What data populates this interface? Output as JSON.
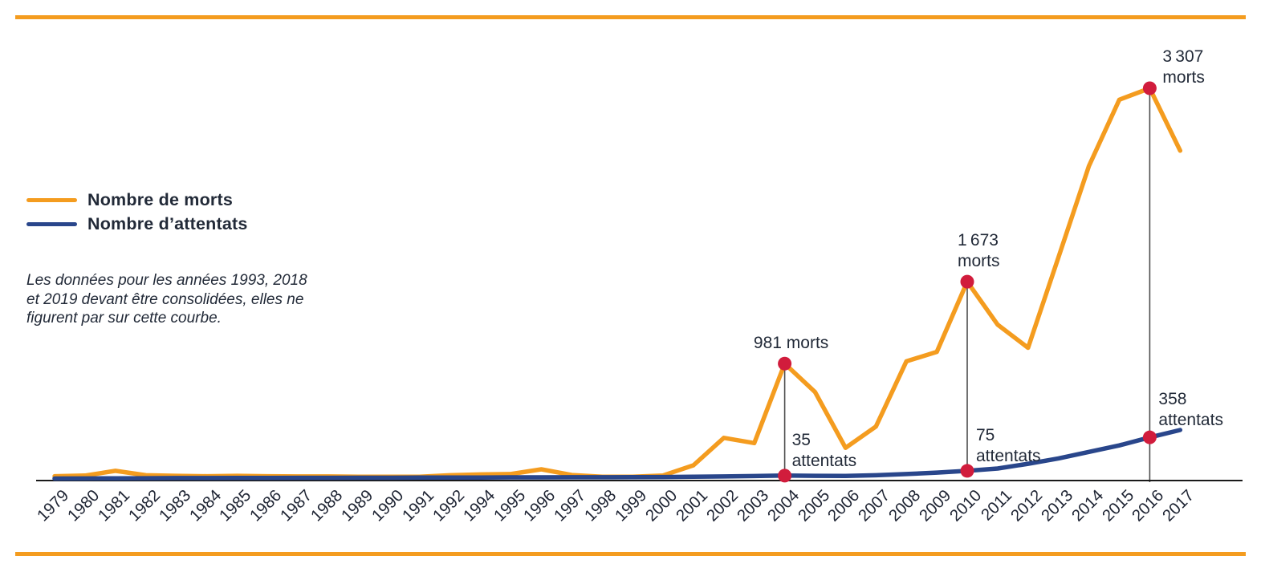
{
  "page": {
    "accent_color": "#F49C1F",
    "background": "#ffffff"
  },
  "legend": {
    "items": [
      {
        "label": "Nombre de morts",
        "color": "#F49C1F"
      },
      {
        "label": "Nombre d’attentats",
        "color": "#29468B"
      }
    ]
  },
  "note": {
    "text": "Les données pour les années 1993, 2018\net 2019 devant être consolidées, elles ne\nfigurent par sur cette courbe."
  },
  "chart_data": {
    "type": "line",
    "title": "",
    "xlabel": "",
    "ylabel": "",
    "ylim": [
      0,
      3307
    ],
    "grid": false,
    "legend_position": "middle-left",
    "x_tick_rotation": 45,
    "note_years_missing": [
      "1993",
      "2018",
      "2019"
    ],
    "categories": [
      "1979",
      "1980",
      "1981",
      "1982",
      "1983",
      "1984",
      "1985",
      "1986",
      "1987",
      "1988",
      "1989",
      "1990",
      "1991",
      "1992",
      "1994",
      "1995",
      "1996",
      "1997",
      "1998",
      "1999",
      "2000",
      "2001",
      "2002",
      "2003",
      "2004",
      "2005",
      "2006",
      "2007",
      "2008",
      "2009",
      "2010",
      "2011",
      "2012",
      "2013",
      "2014",
      "2015",
      "2016",
      "2017"
    ],
    "series": [
      {
        "name": "Nombre de morts",
        "color": "#F49C1F",
        "values": [
          30,
          35,
          75,
          38,
          33,
          30,
          33,
          30,
          28,
          28,
          25,
          25,
          25,
          38,
          45,
          48,
          88,
          40,
          25,
          25,
          36,
          122,
          354,
          310,
          981,
          740,
          270,
          450,
          1000,
          1080,
          1673,
          1310,
          1115,
          1880,
          2650,
          3210,
          3307,
          2780
        ]
      },
      {
        "name": "Nombre d’attentats",
        "color": "#29468B",
        "values": [
          10,
          11,
          12,
          13,
          14,
          14,
          15,
          15,
          16,
          16,
          17,
          17,
          18,
          18,
          19,
          20,
          20,
          21,
          21,
          22,
          23,
          25,
          28,
          31,
          35,
          33,
          32,
          38,
          48,
          60,
          75,
          95,
          135,
          180,
          235,
          290,
          358,
          420
        ]
      }
    ],
    "marker_color": "#D11C3C",
    "connector_color": "#4D4D4D",
    "highlighted_years": [
      "2004",
      "2010",
      "2016"
    ],
    "annotations": [
      {
        "year": "2004",
        "series": "morts",
        "value": 981,
        "lines": [
          "981 morts"
        ]
      },
      {
        "year": "2004",
        "series": "attentats",
        "value": 35,
        "lines": [
          "35",
          "attentats"
        ]
      },
      {
        "year": "2010",
        "series": "morts",
        "value": 1673,
        "lines": [
          "1 673",
          "morts"
        ]
      },
      {
        "year": "2010",
        "series": "attentats",
        "value": 75,
        "lines": [
          "75",
          "attentats"
        ]
      },
      {
        "year": "2016",
        "series": "morts",
        "value": 3307,
        "lines": [
          "3 307",
          "morts"
        ]
      },
      {
        "year": "2016",
        "series": "attentats",
        "value": 358,
        "lines": [
          "358",
          "attentats"
        ]
      }
    ]
  }
}
